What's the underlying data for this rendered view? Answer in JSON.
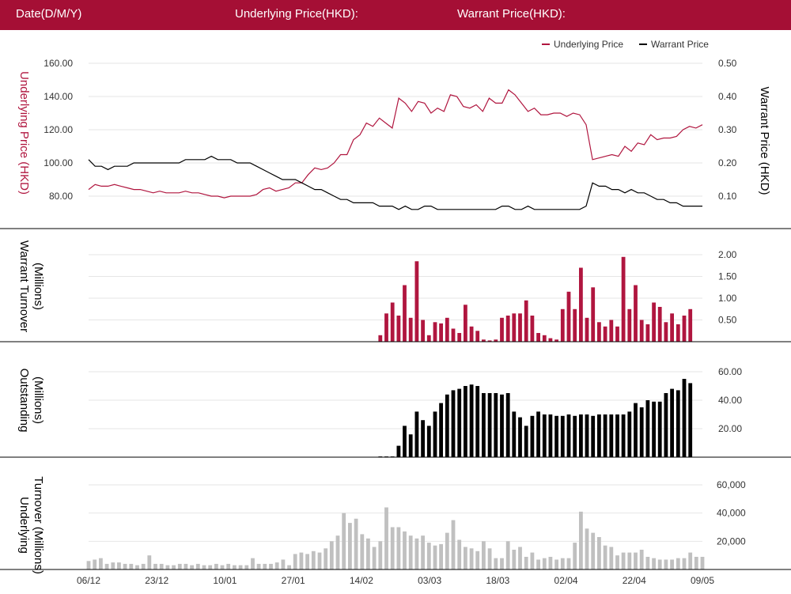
{
  "header": {
    "date_label": "Date(D/M/Y)",
    "underlying_label": "Underlying Price(HKD):",
    "warrant_label": "Warrant Price(HKD):"
  },
  "colors": {
    "header_bg": "#a50f35",
    "underlying": "#b0163f",
    "warrant": "#000000",
    "underlying_turnover": "#c0c0c0"
  },
  "chart_data": [
    {
      "type": "line",
      "legend": [
        "Underlying Price",
        "Warrant Price"
      ],
      "legend_position": "top-right",
      "ylabel_left": "Underlying Price (HKD)",
      "ylabel_right": "Warrant  Price (HKD)",
      "yticks_left": [
        "160.00",
        "140.00",
        "120.00",
        "100.00",
        "80.00"
      ],
      "yticks_right": [
        "0.50",
        "0.40",
        "0.30",
        "0.20",
        "0.10"
      ],
      "ylim_left": [
        70,
        160
      ],
      "ylim_right": [
        0.05,
        0.5
      ],
      "series": [
        {
          "name": "Underlying Price",
          "axis": "left",
          "values": [
            84,
            87,
            86,
            86,
            87,
            86,
            85,
            84,
            84,
            83,
            82,
            83,
            82,
            82,
            82,
            83,
            82,
            82,
            81,
            80,
            80,
            79,
            80,
            80,
            80,
            80,
            81,
            84,
            85,
            83,
            84,
            85,
            88,
            88,
            93,
            97,
            96,
            97,
            100,
            105,
            105,
            114,
            117,
            124,
            122,
            127,
            124,
            121,
            139,
            136,
            131,
            137,
            136,
            130,
            133,
            131,
            141,
            140,
            134,
            133,
            135,
            131,
            139,
            136,
            136,
            144,
            141,
            136,
            131,
            133,
            129,
            129,
            130,
            130,
            128,
            130,
            129,
            123,
            102,
            103,
            104,
            105,
            104,
            110,
            107,
            112,
            111,
            117,
            114,
            115,
            115,
            116,
            120,
            122,
            121,
            123
          ],
          "min_max_note": "values in HKD"
        },
        {
          "name": "Warrant Price",
          "axis": "right",
          "values": [
            0.21,
            0.19,
            0.19,
            0.18,
            0.19,
            0.19,
            0.19,
            0.2,
            0.2,
            0.2,
            0.2,
            0.2,
            0.2,
            0.2,
            0.2,
            0.21,
            0.21,
            0.21,
            0.21,
            0.22,
            0.21,
            0.21,
            0.21,
            0.2,
            0.2,
            0.2,
            0.19,
            0.18,
            0.17,
            0.16,
            0.15,
            0.15,
            0.15,
            0.14,
            0.13,
            0.12,
            0.12,
            0.11,
            0.1,
            0.09,
            0.09,
            0.08,
            0.08,
            0.08,
            0.08,
            0.07,
            0.07,
            0.07,
            0.06,
            0.07,
            0.06,
            0.06,
            0.07,
            0.07,
            0.06,
            0.06,
            0.06,
            0.06,
            0.06,
            0.06,
            0.06,
            0.06,
            0.06,
            0.06,
            0.07,
            0.07,
            0.06,
            0.06,
            0.07,
            0.06,
            0.06,
            0.06,
            0.06,
            0.06,
            0.06,
            0.06,
            0.06,
            0.07,
            0.14,
            0.13,
            0.13,
            0.12,
            0.12,
            0.11,
            0.12,
            0.11,
            0.11,
            0.1,
            0.09,
            0.09,
            0.08,
            0.08,
            0.07,
            0.07,
            0.07,
            0.07
          ]
        }
      ]
    },
    {
      "type": "bar",
      "ylabel": "Warrant  Turnover (Millions)",
      "yticks": [
        "2.00",
        "1.50",
        "1.00",
        "0.50"
      ],
      "ylim": [
        0,
        2.1
      ],
      "start_index": 48,
      "values": [
        0.15,
        0.65,
        0.9,
        0.6,
        1.3,
        0.55,
        1.85,
        0.5,
        0.15,
        0.45,
        0.42,
        0.55,
        0.3,
        0.2,
        0.85,
        0.35,
        0.25,
        0.05,
        0.03,
        0.05,
        0.55,
        0.6,
        0.65,
        0.65,
        0.95,
        0.6,
        0.2,
        0.15,
        0.08,
        0.05,
        0.75,
        1.15,
        0.75,
        1.7,
        0.55,
        1.25,
        0.45,
        0.35,
        0.5,
        0.35,
        1.95,
        0.75,
        1.3,
        0.5,
        0.4,
        0.9,
        0.8,
        0.45,
        0.65,
        0.4,
        0.6,
        0.75
      ]
    },
    {
      "type": "bar",
      "ylabel": "Outstanding (Millions)",
      "yticks": [
        "60.00",
        "40.00",
        "20.00"
      ],
      "ylim": [
        0,
        65
      ],
      "start_index": 48,
      "values": [
        0.5,
        0.5,
        0.5,
        8,
        22,
        16,
        32,
        26,
        22,
        32,
        38,
        44,
        47,
        48,
        50,
        51,
        50,
        45,
        45,
        45,
        44,
        45,
        32,
        28,
        22,
        29,
        32,
        30,
        30,
        29,
        29,
        30,
        29,
        30,
        30,
        29,
        30,
        30,
        30,
        30,
        30,
        32,
        38,
        35,
        40,
        39,
        39,
        45,
        48,
        47,
        55,
        52
      ]
    },
    {
      "type": "bar",
      "ylabel": "Underlying Turnover (Millions)",
      "yticks": [
        "60,000",
        "40,000",
        "20,000"
      ],
      "ylim": [
        0,
        66000
      ],
      "values": [
        6000,
        7000,
        8000,
        4000,
        5000,
        5000,
        4000,
        4000,
        3000,
        4000,
        10000,
        4000,
        4000,
        3000,
        3000,
        4000,
        4000,
        3000,
        4000,
        3000,
        3000,
        4000,
        3000,
        4000,
        3000,
        3000,
        3000,
        8000,
        4000,
        4000,
        4000,
        5000,
        7000,
        3000,
        11000,
        12000,
        11000,
        13000,
        12000,
        15000,
        20000,
        24000,
        40000,
        33000,
        36000,
        25000,
        22000,
        16000,
        20000,
        44000,
        30000,
        30000,
        27000,
        24000,
        22000,
        24000,
        19000,
        17000,
        18000,
        26000,
        35000,
        21000,
        16000,
        15000,
        13000,
        20000,
        15000,
        8000,
        8000,
        20000,
        14000,
        16000,
        9000,
        12000,
        7000,
        8000,
        9000,
        7000,
        8000,
        8000,
        19000,
        41000,
        29000,
        26000,
        23000,
        17000,
        16000,
        10000,
        12000,
        12000,
        12000,
        14000,
        9000,
        8000,
        7000,
        7000,
        7000,
        8000,
        8000,
        12000,
        9000,
        9000
      ],
      "xticks": [
        "06/12",
        "23/12",
        "10/01",
        "27/01",
        "14/02",
        "03/03",
        "18/03",
        "02/04",
        "22/04",
        "09/05"
      ]
    }
  ]
}
